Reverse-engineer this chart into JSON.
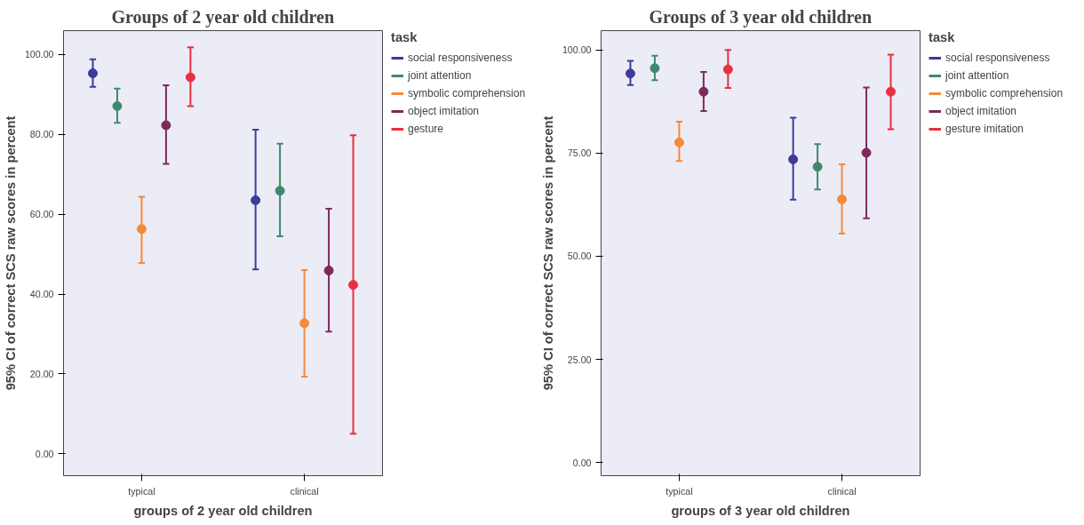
{
  "chart_data": [
    {
      "type": "scatter",
      "title": "Groups of 2 year old children",
      "xlabel": "groups of 2 year old children",
      "ylabel": "95% CI of correct SCS raw scores in percent",
      "legend_title": "task",
      "legend": "top right",
      "marker": "circle",
      "grid": false,
      "categories": [
        "typical",
        "clinical"
      ],
      "ylim": [
        -5.5,
        106
      ],
      "yticks": [
        {
          "value": 0,
          "label": "0.00"
        },
        {
          "value": 20,
          "label": "20.00"
        },
        {
          "value": 40,
          "label": "40.00"
        },
        {
          "value": 60,
          "label": "60.00"
        },
        {
          "value": 80,
          "label": "80.00"
        },
        {
          "value": 100,
          "label": "100.00"
        }
      ],
      "series": [
        {
          "name": "social responsiveness",
          "color": "#3c3c9c",
          "values": [
            95.3,
            63.5
          ],
          "errors": [
            [
              91.9,
              98.8
            ],
            [
              46.2,
              81.2
            ]
          ]
        },
        {
          "name": "joint attention",
          "color": "#3c8a6c",
          "values": [
            87.1,
            65.9
          ],
          "errors": [
            [
              82.9,
              91.5
            ],
            [
              54.5,
              77.7
            ]
          ]
        },
        {
          "name": "symbolic comprehension",
          "color": "#f5893c",
          "values": [
            56.3,
            32.7
          ],
          "errors": [
            [
              47.8,
              64.4
            ],
            [
              19.3,
              46.0
            ]
          ]
        },
        {
          "name": "object imitation",
          "color": "#7c2a5c",
          "values": [
            82.3,
            45.9
          ],
          "errors": [
            [
              72.6,
              92.3
            ],
            [
              30.6,
              61.4
            ]
          ]
        },
        {
          "name": "gesture",
          "color": "#e8303c",
          "values": [
            94.3,
            42.3
          ],
          "errors": [
            [
              87.1,
              101.8
            ],
            [
              5.0,
              79.8
            ]
          ]
        }
      ]
    },
    {
      "type": "scatter",
      "title": "Groups of 3 year old children",
      "xlabel": "groups of 3 year old children",
      "ylabel": "95% CI of correct SCS raw scores in percent",
      "legend_title": "task",
      "legend": "top right",
      "marker": "circle",
      "grid": false,
      "categories": [
        "typical",
        "clinical"
      ],
      "ylim": [
        -3.2,
        104.7
      ],
      "yticks": [
        {
          "value": 0,
          "label": "0.00"
        },
        {
          "value": 25,
          "label": "25.00"
        },
        {
          "value": 50,
          "label": "50.00"
        },
        {
          "value": 75,
          "label": "75.00"
        },
        {
          "value": 100,
          "label": "100.00"
        }
      ],
      "series": [
        {
          "name": "social responsiveness",
          "color": "#3c3c9c",
          "values": [
            94.3,
            73.5
          ],
          "errors": [
            [
              91.5,
              97.4
            ],
            [
              63.7,
              83.6
            ]
          ]
        },
        {
          "name": "joint attention",
          "color": "#3c8a6c",
          "values": [
            95.6,
            71.7
          ],
          "errors": [
            [
              92.7,
              98.6
            ],
            [
              66.2,
              77.2
            ]
          ]
        },
        {
          "name": "symbolic comprehension",
          "color": "#f5893c",
          "values": [
            77.6,
            63.8
          ],
          "errors": [
            [
              73.1,
              82.6
            ],
            [
              55.5,
              72.3
            ]
          ]
        },
        {
          "name": "object imitation",
          "color": "#7c2a5c",
          "values": [
            89.9,
            75.1
          ],
          "errors": [
            [
              85.2,
              94.7
            ],
            [
              59.2,
              90.9
            ]
          ]
        },
        {
          "name": "gesture imitation",
          "color": "#e8303c",
          "values": [
            95.3,
            89.9
          ],
          "errors": [
            [
              90.8,
              100.0
            ],
            [
              80.8,
              98.9
            ]
          ]
        }
      ]
    }
  ]
}
